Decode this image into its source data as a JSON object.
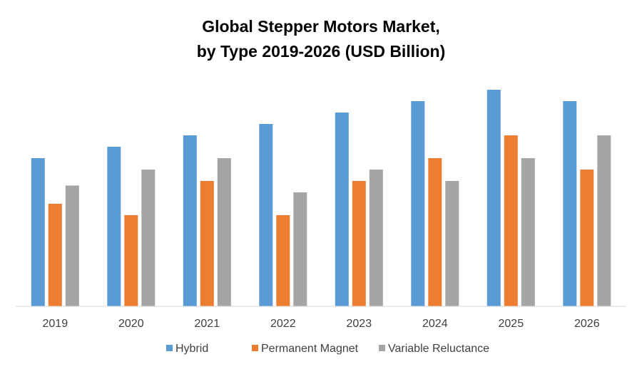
{
  "chart_data": {
    "type": "bar",
    "title": "Global Stepper Motors Market,",
    "subtitle": "by Type 2019-2026 (USD Billion)",
    "xlabel": "",
    "ylabel": "",
    "categories": [
      "2019",
      "2020",
      "2021",
      "2022",
      "2023",
      "2024",
      "2025",
      "2026"
    ],
    "series": [
      {
        "name": "Hybrid",
        "color": "#5B9BD5",
        "values": [
          6.5,
          7.0,
          7.5,
          8.0,
          8.5,
          9.0,
          9.5,
          9.0
        ]
      },
      {
        "name": "Permanent Magnet",
        "color": "#ED7D31",
        "values": [
          4.5,
          4.0,
          5.5,
          4.0,
          5.5,
          6.5,
          7.5,
          6.0
        ]
      },
      {
        "name": "Variable Reluctance",
        "color": "#A5A5A5",
        "values": [
          5.3,
          6.0,
          6.5,
          5.0,
          6.0,
          5.5,
          6.5,
          7.5
        ]
      }
    ],
    "ylim": [
      0,
      10
    ],
    "grid": false,
    "legend_position": "bottom"
  }
}
